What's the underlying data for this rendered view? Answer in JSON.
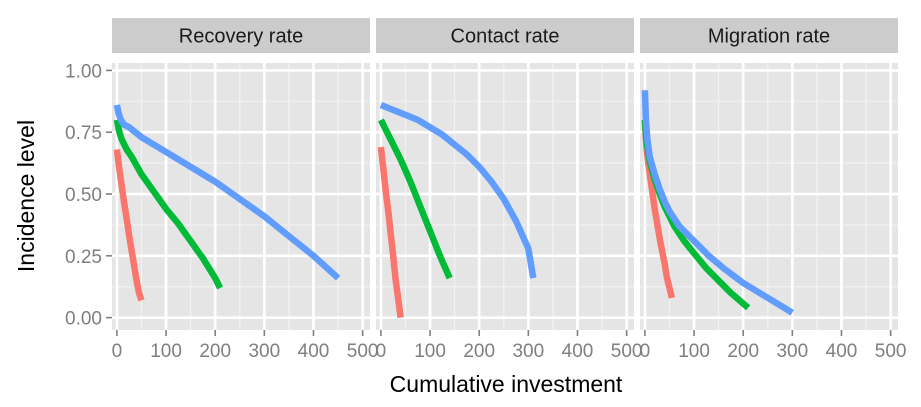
{
  "chart_data": {
    "type": "line",
    "xlabel": "Cumulative investment",
    "ylabel": "Incidence level",
    "xlim": [
      -10,
      515
    ],
    "ylim": [
      -0.05,
      1.03
    ],
    "x_ticks": [
      0,
      100,
      200,
      300,
      400,
      500
    ],
    "x_tick_labels": [
      "0",
      "100",
      "200",
      "300",
      "400",
      "500"
    ],
    "y_ticks": [
      0,
      0.25,
      0.5,
      0.75,
      1.0
    ],
    "y_tick_labels": [
      "0.00",
      "0.25",
      "0.50",
      "0.75",
      "1.00"
    ],
    "grid": true,
    "legend": "none",
    "series_colors": [
      "#F8766D",
      "#00BA38",
      "#619CFF"
    ],
    "panels": [
      {
        "title": "Recovery rate",
        "series": [
          {
            "color": "#F8766D",
            "x": [
              0,
              5,
              10,
              15,
              20,
              25,
              30,
              35,
              40,
              45,
              50
            ],
            "y": [
              0.68,
              0.6,
              0.53,
              0.46,
              0.4,
              0.33,
              0.27,
              0.21,
              0.15,
              0.1,
              0.07
            ]
          },
          {
            "color": "#00BA38",
            "x": [
              0,
              5,
              10,
              20,
              30,
              50,
              75,
              100,
              125,
              150,
              175,
              200,
              210
            ],
            "y": [
              0.8,
              0.75,
              0.72,
              0.68,
              0.65,
              0.58,
              0.51,
              0.44,
              0.38,
              0.31,
              0.24,
              0.16,
              0.12
            ]
          },
          {
            "color": "#619CFF",
            "x": [
              0,
              3,
              8,
              15,
              25,
              50,
              100,
              150,
              200,
              250,
              300,
              350,
              400,
              450
            ],
            "y": [
              0.86,
              0.83,
              0.8,
              0.78,
              0.77,
              0.73,
              0.67,
              0.61,
              0.55,
              0.48,
              0.41,
              0.33,
              0.25,
              0.16
            ]
          }
        ]
      },
      {
        "title": "Contact rate",
        "series": [
          {
            "color": "#F8766D",
            "x": [
              0,
              5,
              10,
              15,
              20,
              25,
              30,
              35,
              40
            ],
            "y": [
              0.69,
              0.6,
              0.51,
              0.43,
              0.34,
              0.25,
              0.15,
              0.08,
              0.0
            ]
          },
          {
            "color": "#00BA38",
            "x": [
              0,
              10,
              20,
              40,
              60,
              80,
              100,
              120,
              140
            ],
            "y": [
              0.8,
              0.76,
              0.72,
              0.64,
              0.55,
              0.45,
              0.35,
              0.25,
              0.16
            ]
          },
          {
            "color": "#619CFF",
            "x": [
              0,
              25,
              50,
              75,
              100,
              125,
              150,
              175,
              200,
              225,
              250,
              275,
              300,
              310
            ],
            "y": [
              0.86,
              0.84,
              0.82,
              0.8,
              0.77,
              0.74,
              0.7,
              0.66,
              0.61,
              0.55,
              0.48,
              0.39,
              0.28,
              0.16
            ]
          }
        ]
      },
      {
        "title": "Migration rate",
        "series": [
          {
            "color": "#F8766D",
            "x": [
              0,
              2,
              5,
              10,
              15,
              20,
              25,
              30,
              35,
              40,
              45,
              50,
              55
            ],
            "y": [
              0.8,
              0.72,
              0.65,
              0.58,
              0.51,
              0.44,
              0.38,
              0.32,
              0.27,
              0.22,
              0.16,
              0.12,
              0.08
            ]
          },
          {
            "color": "#00BA38",
            "x": [
              0,
              2,
              5,
              10,
              20,
              30,
              40,
              50,
              60,
              80,
              100,
              125,
              150,
              175,
              210
            ],
            "y": [
              0.8,
              0.74,
              0.69,
              0.63,
              0.56,
              0.5,
              0.45,
              0.41,
              0.37,
              0.31,
              0.26,
              0.2,
              0.15,
              0.1,
              0.04
            ]
          },
          {
            "color": "#619CFF",
            "x": [
              0,
              1,
              2,
              5,
              10,
              20,
              30,
              40,
              50,
              70,
              100,
              130,
              160,
              200,
              250,
              300
            ],
            "y": [
              0.92,
              0.86,
              0.8,
              0.72,
              0.65,
              0.58,
              0.52,
              0.47,
              0.43,
              0.37,
              0.31,
              0.25,
              0.2,
              0.14,
              0.08,
              0.02
            ]
          }
        ]
      }
    ]
  }
}
